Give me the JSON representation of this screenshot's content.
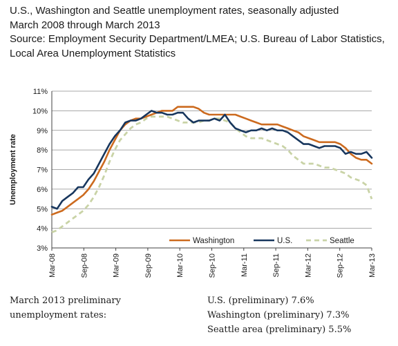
{
  "header": {
    "title": "U.S., Washington and Seattle unemployment rates, seasonally adjusted",
    "period": "March 2008 through March 2013",
    "source_line1": "Source: Employment Security Department/LMEA; U.S. Bureau of Labor Statistics,",
    "source_line2": "Local Area Unemployment Statistics"
  },
  "footer": {
    "left_line1": "March 2013 preliminary",
    "left_line2": "unemployment rates:",
    "us": "U.S. (preliminary) 7.6%",
    "washington": "Washington (preliminary) 7.3%",
    "seattle": "Seattle area (preliminary) 5.5%"
  },
  "colors": {
    "washington": "#cc6a1e",
    "us": "#17365d",
    "seattle": "#c9d3a6",
    "grid": "#8c8c8c",
    "axis": "#404040"
  },
  "chart_data": {
    "type": "line",
    "ylabel": "Unemployment rate",
    "xlabel": "",
    "ylim": [
      3,
      11
    ],
    "yticks": [
      "3%",
      "4%",
      "5%",
      "6%",
      "7%",
      "8%",
      "9%",
      "10%",
      "11%"
    ],
    "xticks": [
      "Mar-08",
      "Sep-08",
      "Mar-09",
      "Sep-09",
      "Mar-10",
      "Sep-10",
      "Mar-11",
      "Sep-11",
      "Mar-12",
      "Sep-12",
      "Mar-13"
    ],
    "x_start": "2008-03",
    "x_end": "2013-03",
    "grid": "horizontal",
    "legend_position": "bottom-right",
    "series": [
      {
        "name": "Washington",
        "key": "washington",
        "style": "solid",
        "values": [
          4.7,
          4.8,
          4.9,
          5.1,
          5.3,
          5.5,
          5.7,
          6.0,
          6.4,
          6.9,
          7.4,
          8.0,
          8.5,
          9.0,
          9.3,
          9.5,
          9.6,
          9.6,
          9.7,
          9.8,
          9.9,
          10.0,
          10.0,
          10.0,
          10.2,
          10.2,
          10.2,
          10.2,
          10.1,
          9.9,
          9.8,
          9.8,
          9.8,
          9.8,
          9.8,
          9.8,
          9.7,
          9.6,
          9.5,
          9.4,
          9.3,
          9.3,
          9.3,
          9.3,
          9.2,
          9.1,
          9.0,
          8.9,
          8.7,
          8.6,
          8.5,
          8.4,
          8.4,
          8.4,
          8.4,
          8.3,
          8.1,
          7.8,
          7.6,
          7.5,
          7.5,
          7.3
        ]
      },
      {
        "name": "U.S.",
        "key": "us",
        "style": "solid",
        "values": [
          5.1,
          5.0,
          5.4,
          5.6,
          5.8,
          6.1,
          6.1,
          6.5,
          6.8,
          7.3,
          7.8,
          8.3,
          8.7,
          9.0,
          9.4,
          9.5,
          9.5,
          9.6,
          9.8,
          10.0,
          9.9,
          9.9,
          9.8,
          9.8,
          9.9,
          9.9,
          9.6,
          9.4,
          9.5,
          9.5,
          9.5,
          9.6,
          9.5,
          9.8,
          9.4,
          9.1,
          9.0,
          8.9,
          9.0,
          9.0,
          9.1,
          9.0,
          9.1,
          9.0,
          9.0,
          8.9,
          8.7,
          8.5,
          8.3,
          8.3,
          8.2,
          8.1,
          8.2,
          8.2,
          8.2,
          8.1,
          7.8,
          7.9,
          7.8,
          7.8,
          7.9,
          7.6
        ]
      },
      {
        "name": "Seattle",
        "key": "seattle",
        "style": "dashed",
        "values": [
          3.8,
          3.9,
          4.1,
          4.3,
          4.5,
          4.7,
          4.9,
          5.2,
          5.6,
          6.1,
          6.7,
          7.4,
          8.0,
          8.5,
          8.8,
          9.1,
          9.3,
          9.4,
          9.6,
          9.7,
          9.7,
          9.7,
          9.7,
          9.6,
          9.5,
          9.4,
          9.4,
          9.4,
          9.4,
          9.5,
          9.5,
          9.6,
          9.6,
          9.5,
          9.4,
          9.1,
          8.9,
          8.7,
          8.6,
          8.6,
          8.6,
          8.5,
          8.4,
          8.3,
          8.2,
          8.0,
          7.7,
          7.5,
          7.3,
          7.3,
          7.3,
          7.2,
          7.1,
          7.1,
          7.0,
          6.9,
          6.8,
          6.6,
          6.5,
          6.4,
          6.2,
          5.5
        ]
      }
    ]
  }
}
